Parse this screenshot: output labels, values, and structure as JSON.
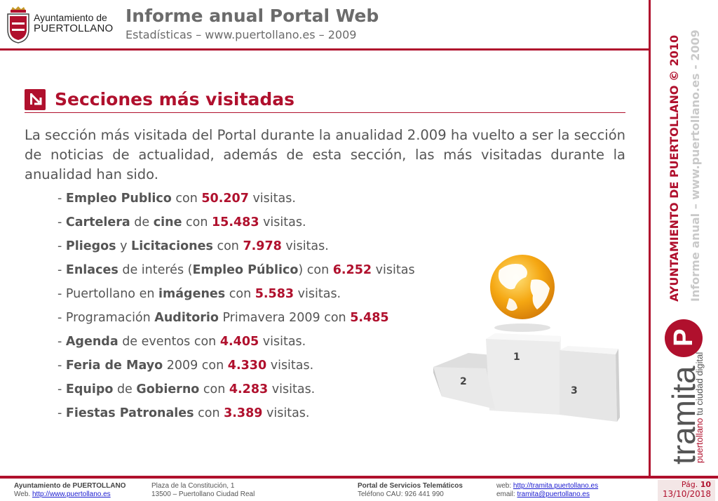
{
  "logo": {
    "line1": "Ayuntamiento de",
    "line2": "PUERTOLLANO",
    "crest_icon": "coat-of-arms-icon"
  },
  "header": {
    "title": "Informe anual Portal Web",
    "subtitle": "Estadísticas – www.puertollano.es – 2009"
  },
  "section": {
    "icon": "arrow-down-right-icon",
    "title": "Secciones más visitadas"
  },
  "intro": "La sección más visitada del Portal durante la anualidad 2.009 ha vuelto a ser la sección de noticias de actualidad, además de esta sección, las más visitadas durante la anualidad han sido.",
  "items": [
    {
      "a": "Empleo Publico",
      "b": " con ",
      "c": "",
      "d": "",
      "e": "",
      "num": "50.207",
      "tail": " visitas."
    },
    {
      "a": "Cartelera",
      "b": " de ",
      "c": "cine",
      "d": " con ",
      "e": "",
      "num": "15.483",
      "tail": " visitas."
    },
    {
      "a": "Pliegos",
      "b": " y ",
      "c": "Licitaciones",
      "d": " con ",
      "e": "",
      "num": "7.978",
      "tail": " visitas."
    },
    {
      "a": "Enlaces",
      "b": " de interés (",
      "c": "Empleo Público",
      "d": ") con ",
      "e": "",
      "num": "6.252",
      "tail": " visitas"
    },
    {
      "a": "",
      "b": "Puertollano en ",
      "c": "imágenes",
      "d": " con ",
      "e": "",
      "num": "5.583",
      "tail": " visitas."
    },
    {
      "a": "",
      "b": "Programación ",
      "c": "Auditorio",
      "d": " Primavera 2009 con ",
      "e": "",
      "num": "5.485",
      "tail": ""
    },
    {
      "a": "Agenda",
      "b": " de eventos con ",
      "c": "",
      "d": "",
      "e": "",
      "num": "4.405",
      "tail": "  visitas."
    },
    {
      "a": "Feria de Mayo",
      "b": " 2009 con ",
      "c": "",
      "d": "",
      "e": "",
      "num": "4.330",
      "tail": "  visitas."
    },
    {
      "a": "Equipo",
      "b": " de ",
      "c": "Gobierno",
      "d": " con ",
      "e": "",
      "num": "4.283",
      "tail": "  visitas."
    },
    {
      "a": "Fiestas Patronales",
      "b": " con ",
      "c": "",
      "d": "",
      "e": "",
      "num": "3.389",
      "tail": "  visitas."
    }
  ],
  "podium": {
    "globe_icon": "globe-icon",
    "places": [
      "1",
      "2",
      "3"
    ]
  },
  "side": {
    "vertical_1": "AYUNTAMIENTO DE PUERTOLLANO © 2010",
    "vertical_2": "Informe anual – www.puertollano.es - 2009",
    "brand": "tramita",
    "brand_icon": "P",
    "tagline_a": "puertollano",
    "tagline_b": " tu ciudad digital"
  },
  "footer": {
    "col1_title": "Ayuntamiento de PUERTOLLANO",
    "col1_prefix": "Web. ",
    "col1_link": "http://www.puertollano.es",
    "col2_line1": "Plaza de la Constitución, 1",
    "col2_line2": "13500 – Puertollano Ciudad Real",
    "col3_title": "Portal de Servicios Telemáticos",
    "col3_line2": "Teléfono CAU: 926 441 990",
    "col4_prefix1": "web: ",
    "col4_link1": "http://tramita.puertollano.es",
    "col4_prefix2": "email: ",
    "col4_link2": "tramita@puertollano.es",
    "page_label": "Pág. ",
    "page_num": "10",
    "date": "13/10/2018"
  },
  "colors": {
    "accent": "#b0102d",
    "text": "#555555"
  }
}
